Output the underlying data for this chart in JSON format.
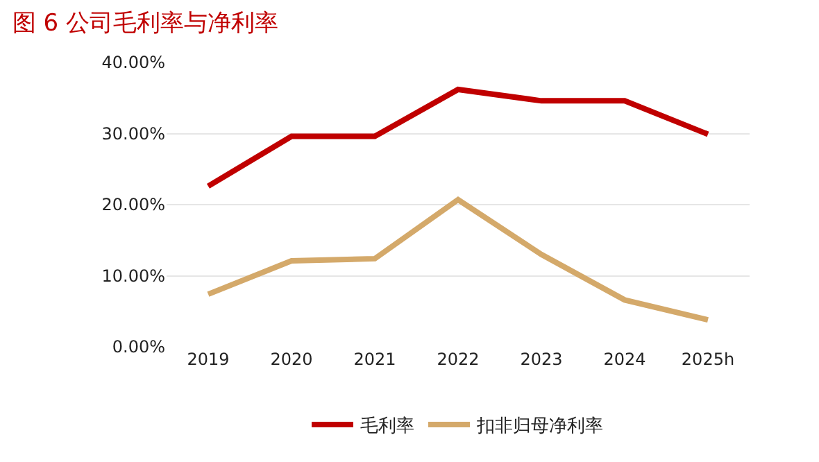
{
  "chart_data": {
    "type": "line",
    "title": "图 6 公司毛利率与净利率",
    "categories": [
      "2019",
      "2020",
      "2021",
      "2022",
      "2023",
      "2024",
      "2025h"
    ],
    "series": [
      {
        "name": "毛利率",
        "color": "#c00000",
        "values": [
          22.6,
          29.6,
          29.6,
          36.2,
          34.6,
          34.6,
          29.9
        ]
      },
      {
        "name": "扣非归母净利率",
        "color": "#d4a96a",
        "values": [
          7.4,
          12.1,
          12.4,
          20.7,
          13.0,
          6.6,
          3.8
        ]
      }
    ],
    "ylim": [
      0,
      40
    ],
    "yticks": [
      {
        "value": 0,
        "label": "0.00%"
      },
      {
        "value": 10,
        "label": "10.00%"
      },
      {
        "value": 20,
        "label": "20.00%"
      },
      {
        "value": 30,
        "label": "30.00%"
      },
      {
        "value": 40,
        "label": "40.00%"
      }
    ],
    "grid": "y",
    "legend": "bottom",
    "marker": "none",
    "line_style": "solid"
  }
}
